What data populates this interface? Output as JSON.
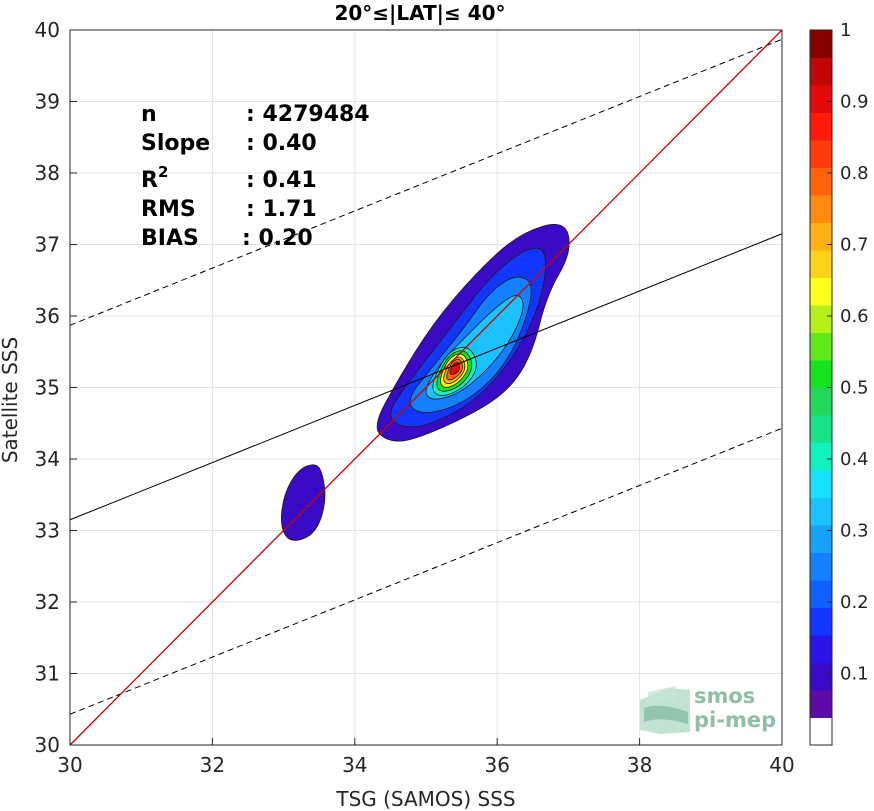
{
  "chart_data": {
    "type": "scatter",
    "title": "20°≤|LAT|≤ 40°",
    "xlabel": "TSG (SAMOS) SSS",
    "ylabel": "Satellite SSS",
    "xlim": [
      30,
      40
    ],
    "ylim": [
      30,
      40
    ],
    "xticks": [
      "30",
      "32",
      "34",
      "36",
      "38",
      "40"
    ],
    "yticks": [
      "30",
      "31",
      "32",
      "33",
      "34",
      "35",
      "36",
      "37",
      "38",
      "39",
      "40"
    ],
    "grid": true,
    "stats": [
      {
        "key": "n",
        "value": ": 4279484"
      },
      {
        "key": "Slope",
        "value": ": 0.40"
      },
      {
        "key": "R",
        "sup": "2",
        "value": ": 0.41"
      },
      {
        "key": "RMS",
        "value": ": 1.71"
      },
      {
        "key": "BIAS",
        "value": ": 0.20"
      }
    ],
    "fit_line": {
      "slope": 0.4,
      "intercept": 33.15
    },
    "fit_bounds_offset": 2.72,
    "one_to_one": true,
    "colorbar": {
      "ticks": [
        "0.1",
        "0.2",
        "0.3",
        "0.4",
        "0.5",
        "0.6",
        "0.7",
        "0.8",
        "0.9",
        "1"
      ],
      "colors": [
        "#ffffff",
        "#5e0ba6",
        "#3a0bc6",
        "#2a15e6",
        "#1235ff",
        "#1060ff",
        "#1580ff",
        "#18a2f6",
        "#1ac2ff",
        "#15e2ff",
        "#10f2c0",
        "#18e38a",
        "#22d75c",
        "#15e31e",
        "#60e81a",
        "#b6f018",
        "#ffff1e",
        "#ffd21a",
        "#ffb114",
        "#ff8a0f",
        "#ff640a",
        "#ff3c0a",
        "#ff1a0a",
        "#e50a0a",
        "#c20505",
        "#8a0000"
      ]
    },
    "density_levels": [
      {
        "level": 0.08,
        "color": "#3a0bc6",
        "region": "[[33.3,33.95],[33.05,33.6],[32.9,33.1],[33.05,32.85],[33.4,33.05],[33.55,33.75],[33.4,33.95]]"
      },
      {
        "level": 0.08,
        "color": "#3a0bc6",
        "region": "main"
      },
      {
        "level": 0.15,
        "color": "#1235ff"
      },
      {
        "level": 0.22,
        "color": "#1580ff"
      },
      {
        "level": 0.3,
        "color": "#1ac2ff"
      },
      {
        "level": 0.45,
        "color": "#10f2c0"
      },
      {
        "level": 0.55,
        "color": "#15e31e"
      },
      {
        "level": 0.65,
        "color": "#ffff1e"
      },
      {
        "level": 0.75,
        "color": "#ffb114"
      },
      {
        "level": 0.85,
        "color": "#ff640a"
      },
      {
        "level": 0.95,
        "color": "#e50a0a"
      }
    ]
  },
  "watermark": {
    "line1": "smos",
    "line2": "pi-mep"
  }
}
